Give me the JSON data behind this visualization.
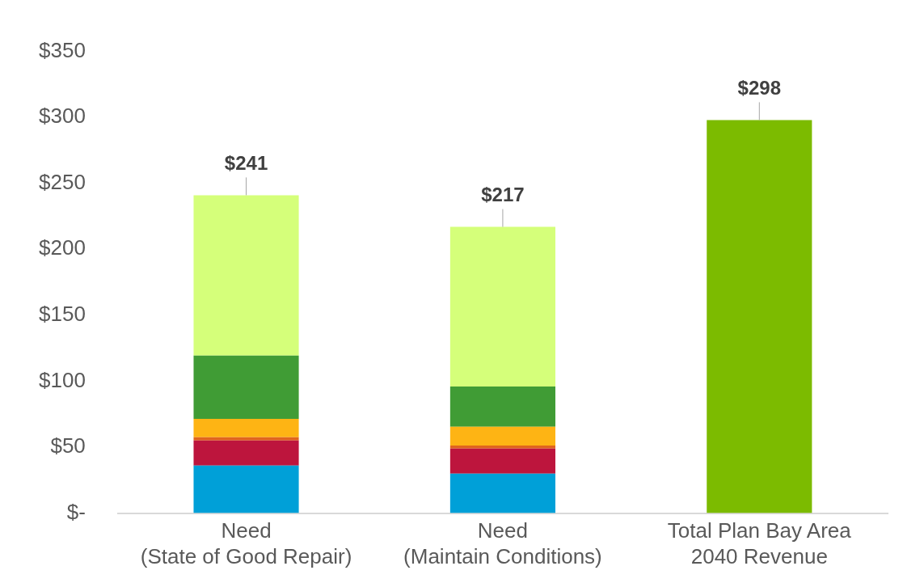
{
  "chart_data": {
    "type": "bar",
    "stacked": true,
    "categories": [
      "Need\n(State of Good Repair)",
      "Need\n(Maintain Conditions)",
      "Total Plan Bay Area\n2040 Revenue"
    ],
    "series": [
      {
        "color": "#00a0d8",
        "values": [
          36,
          30,
          null
        ]
      },
      {
        "color": "#bd153d",
        "values": [
          19,
          19,
          null
        ]
      },
      {
        "color": "#e0641e",
        "values": [
          2.5,
          2.3,
          null
        ]
      },
      {
        "color": "#feb414",
        "values": [
          14,
          14.2,
          null
        ]
      },
      {
        "color": "#409c35",
        "values": [
          48,
          30.5,
          null
        ]
      },
      {
        "color": "#d5ff7a",
        "values": [
          121.5,
          121,
          null
        ]
      },
      {
        "color": "#7cbb00",
        "values": [
          null,
          null,
          298
        ]
      }
    ],
    "totals": [
      "$241",
      "$217",
      "$298"
    ],
    "ylim": [
      0,
      350
    ],
    "yticks": [
      {
        "value": 0,
        "label": "$-"
      },
      {
        "value": 50,
        "label": "$50"
      },
      {
        "value": 100,
        "label": "$100"
      },
      {
        "value": 150,
        "label": "$150"
      },
      {
        "value": 200,
        "label": "$200"
      },
      {
        "value": 250,
        "label": "$250"
      },
      {
        "value": 300,
        "label": "$300"
      },
      {
        "value": 350,
        "label": "$350"
      }
    ],
    "grid": false,
    "legend": false
  }
}
